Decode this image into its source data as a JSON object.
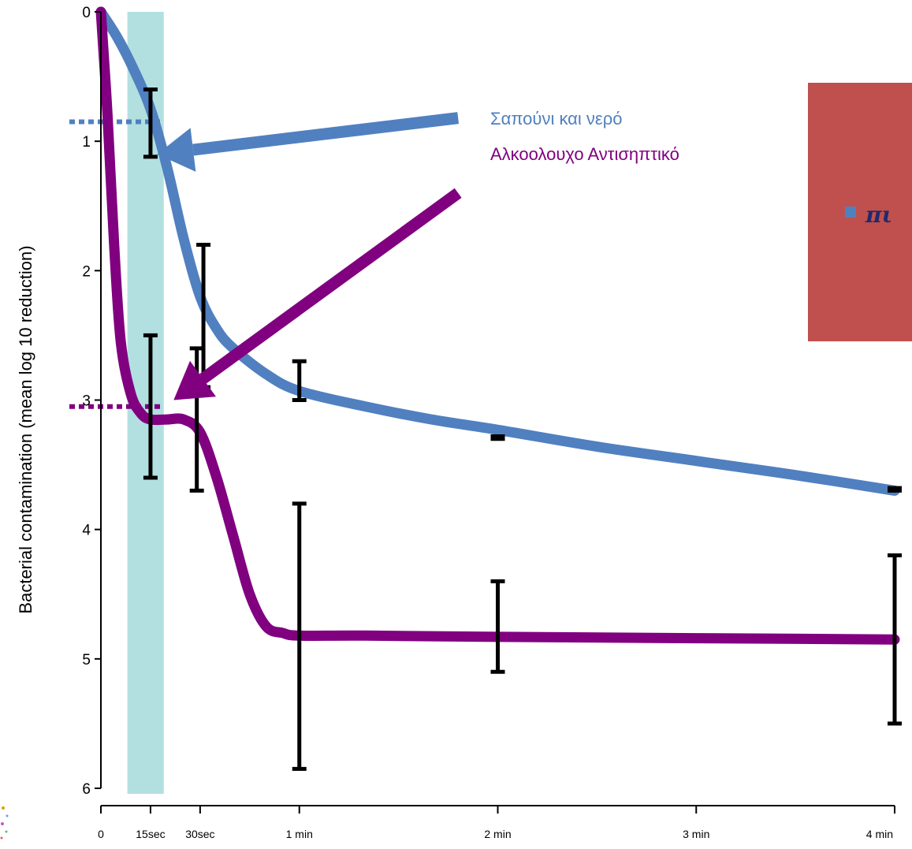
{
  "colors": {
    "soap": "#5080c0",
    "alcohol": "#800080",
    "errorbar": "#000000",
    "highlight": "#b2e0e0",
    "callout_box": "#c0504d",
    "callout_bullet": "#4f81bd",
    "callout_text": "#1f2a6e"
  },
  "chart_data": {
    "type": "line",
    "ylabel": "Bacterial contamination (mean log 10 reduction)",
    "y_axis": {
      "min": 0,
      "max": 6,
      "inverted": true,
      "ticks": [
        0,
        1,
        2,
        3,
        4,
        5,
        6
      ]
    },
    "x_axis": {
      "unit": "seconds",
      "min": 0,
      "max": 240,
      "ticks": [
        {
          "value": 0,
          "label": "0"
        },
        {
          "value": 15,
          "label": "15sec"
        },
        {
          "value": 30,
          "label": "30sec"
        },
        {
          "value": 60,
          "label": "1 min"
        },
        {
          "value": 120,
          "label": "2 min"
        },
        {
          "value": 180,
          "label": "3 min"
        },
        {
          "value": 240,
          "label": "4 min"
        }
      ]
    },
    "highlight_band": {
      "x_from": 8,
      "x_to": 19
    },
    "series": [
      {
        "name": "Σαπούνι και νερό",
        "color": "#5080c0",
        "points": [
          [
            0,
            0
          ],
          [
            5,
            0.2
          ],
          [
            10,
            0.45
          ],
          [
            15,
            0.75
          ],
          [
            20,
            1.2
          ],
          [
            25,
            1.75
          ],
          [
            30,
            2.2
          ],
          [
            35,
            2.45
          ],
          [
            40,
            2.6
          ],
          [
            50,
            2.8
          ],
          [
            60,
            2.93
          ],
          [
            80,
            3.05
          ],
          [
            100,
            3.15
          ],
          [
            120,
            3.23
          ],
          [
            150,
            3.36
          ],
          [
            180,
            3.47
          ],
          [
            210,
            3.58
          ],
          [
            240,
            3.7
          ]
        ],
        "reference_line": 0.85
      },
      {
        "name": "Αλκοολουχο Αντισηπτικό",
        "color": "#800080",
        "points": [
          [
            0,
            0
          ],
          [
            2,
            0.8
          ],
          [
            4,
            1.8
          ],
          [
            6,
            2.55
          ],
          [
            9,
            2.95
          ],
          [
            12,
            3.1
          ],
          [
            15,
            3.15
          ],
          [
            20,
            3.15
          ],
          [
            25,
            3.15
          ],
          [
            30,
            3.25
          ],
          [
            35,
            3.6
          ],
          [
            40,
            4.05
          ],
          [
            45,
            4.5
          ],
          [
            50,
            4.75
          ],
          [
            55,
            4.8
          ],
          [
            60,
            4.82
          ],
          [
            80,
            4.82
          ],
          [
            120,
            4.83
          ],
          [
            180,
            4.84
          ],
          [
            240,
            4.85
          ]
        ],
        "reference_line": 3.05
      }
    ],
    "error_bars": [
      {
        "x": 15,
        "low": 0.6,
        "high": 1.12
      },
      {
        "x": 15,
        "low": 2.5,
        "high": 3.6
      },
      {
        "x": 29,
        "low": 2.6,
        "high": 3.7
      },
      {
        "x": 31,
        "low": 1.8,
        "high": 2.9
      },
      {
        "x": 60,
        "low": 2.7,
        "high": 3.0
      },
      {
        "x": 60,
        "low": 3.8,
        "high": 5.85
      },
      {
        "x": 120,
        "low": 3.28,
        "high": 3.3
      },
      {
        "x": 120,
        "low": 4.4,
        "high": 5.1
      },
      {
        "x": 240,
        "low": 3.68,
        "high": 3.7
      },
      {
        "x": 240,
        "low": 4.2,
        "high": 5.5
      }
    ],
    "arrows": [
      {
        "series": 0,
        "from": [
          108,
          0.82
        ],
        "to": [
          17,
          1.1
        ]
      },
      {
        "series": 1,
        "from": [
          108,
          1.4
        ],
        "to": [
          22,
          3.0
        ]
      }
    ]
  },
  "legend": {
    "soap_label": "Σαπούνι και νερό",
    "alcohol_label": "Αλκοολουχο Αντισηπτικό"
  },
  "callout": {
    "text": "πι"
  }
}
